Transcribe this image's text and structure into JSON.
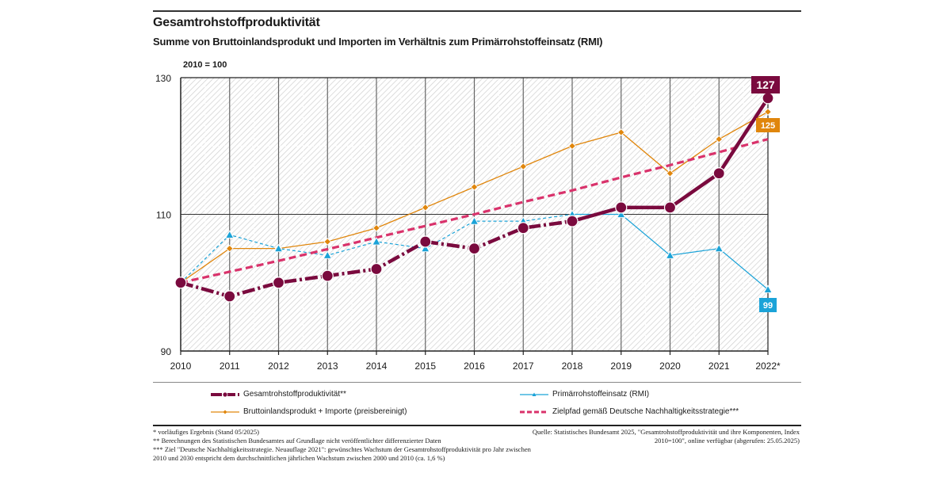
{
  "header": {
    "title": "Gesamtrohstoffproduktivität",
    "subtitle": "Summe von Bruttoinlandsprodukt und Importen im Verhältnis zum Primärrohstoffeinsatz (RMI)",
    "unit_label": "2010 = 100"
  },
  "chart_data": {
    "type": "line",
    "title": "Gesamtrohstoffproduktivität",
    "subtitle": "Summe von Bruttoinlandsprodukt und Importen im Verhältnis zum Primärrohstoffeinsatz (RMI)",
    "xlabel": "",
    "ylabel": "2010 = 100",
    "categories": [
      "2010",
      "2011",
      "2012",
      "2013",
      "2014",
      "2015",
      "2016",
      "2017",
      "2018",
      "2019",
      "2020",
      "2021",
      "2022*"
    ],
    "ylim": [
      90,
      130
    ],
    "yticks": [
      90,
      110,
      130
    ],
    "grid": true,
    "legend_position": "bottom",
    "series": [
      {
        "name": "Gesamtrohstoffproduktivität**",
        "color": "#7a0a3e",
        "marker": "circle",
        "style": "dashdot-then-solid",
        "values": [
          100,
          98,
          100,
          101,
          102,
          106,
          105,
          108,
          109,
          111,
          111,
          116,
          127
        ],
        "end_label": "127"
      },
      {
        "name": "Primärrohstoffeinsatz (RMI)",
        "color": "#1ba3d8",
        "marker": "triangle",
        "style": "dashed-then-solid",
        "values": [
          100,
          107,
          105,
          104,
          106,
          105,
          109,
          109,
          110,
          110,
          104,
          105,
          99
        ],
        "end_label": "99"
      },
      {
        "name": "Bruttoinlandsprodukt + Importe (preisbereinigt)",
        "color": "#e0860c",
        "marker": "diamond",
        "style": "solid",
        "values": [
          100,
          105,
          105,
          106,
          108,
          111,
          114,
          117,
          120,
          122,
          116,
          121,
          125
        ],
        "end_label": "125"
      },
      {
        "name": "Zielpfad gemäß Deutsche Nachhaltigkeitsstrategie***",
        "color": "#d9326b",
        "marker": "none",
        "style": "dashed",
        "values": [
          100,
          101.6,
          103.2,
          104.9,
          106.6,
          108.3,
          110.0,
          111.8,
          113.5,
          115.4,
          117.2,
          119.1,
          121.0
        ]
      }
    ]
  },
  "legend": {
    "items": [
      {
        "label": "Gesamtrohstoffproduktivität**"
      },
      {
        "label": "Primärrohstoffeinsatz (RMI)"
      },
      {
        "label": "Bruttoinlandsprodukt + Importe (preisbereinigt)"
      },
      {
        "label": "Zielpfad gemäß Deutsche Nachhaltigkeitsstrategie***"
      }
    ]
  },
  "footnotes": [
    "* vorläufiges Ergebnis (Stand 05/2025)",
    "** Berechnungen des Statistischen Bundesamtes auf Grundlage nicht veröffentlichter differenzierter Daten",
    "*** Ziel \"Deutsche Nachhaltigkeitsstrategie. Neuauflage 2021\": gewünschtes Wachstum der Gesamtrohstoffproduktivität pro Jahr zwischen 2010 und 2030 entspricht dem durchschnittlichen jährlichen Wachstum zwischen 2000 und 2010 (ca. 1,6  %)"
  ],
  "source": "Quelle: Statistisches Bundesamt 2025, \"Gesamtrohstoffproduktivität und ihre Komponenten, Index 2010=100\", online verfügbar (abgerufen: 25.05.2025)"
}
